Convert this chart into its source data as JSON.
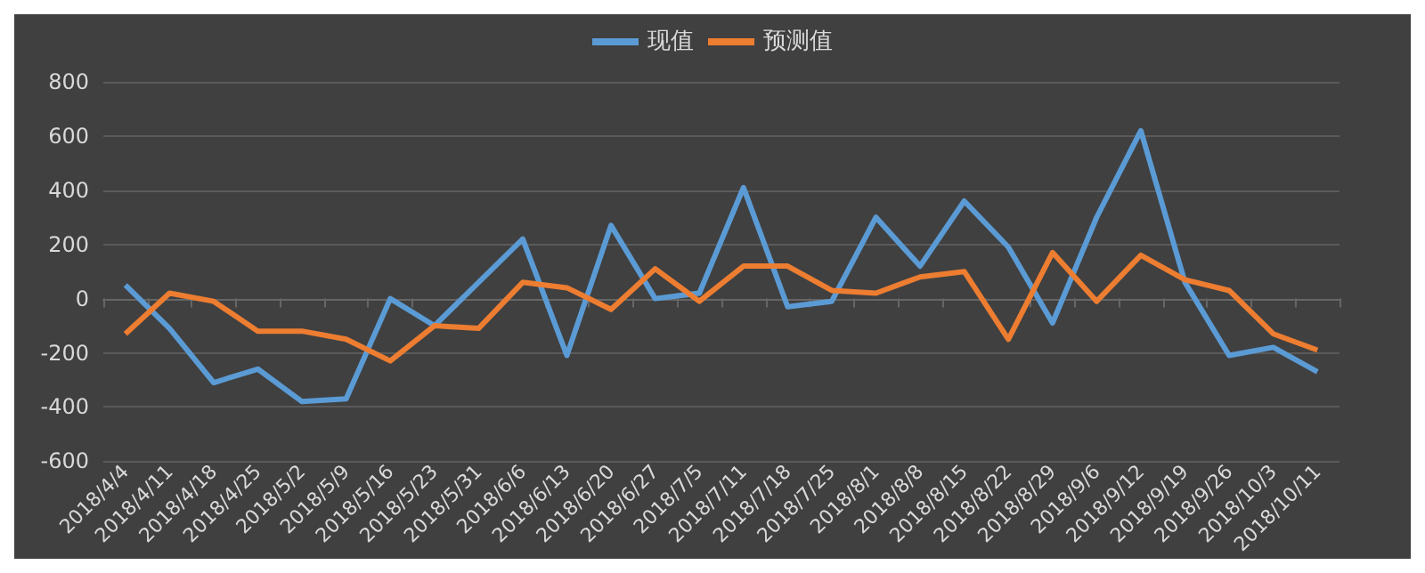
{
  "chart_data": {
    "type": "line",
    "categories": [
      "2018/4/4",
      "2018/4/11",
      "2018/4/18",
      "2018/4/25",
      "2018/5/2",
      "2018/5/9",
      "2018/5/16",
      "2018/5/23",
      "2018/5/31",
      "2018/6/6",
      "2018/6/13",
      "2018/6/20",
      "2018/6/27",
      "2018/7/5",
      "2018/7/11",
      "2018/7/18",
      "2018/7/25",
      "2018/8/1",
      "2018/8/8",
      "2018/8/15",
      "2018/8/22",
      "2018/8/29",
      "2018/9/6",
      "2018/9/12",
      "2018/9/19",
      "2018/9/26",
      "2018/10/3",
      "2018/10/11"
    ],
    "series": [
      {
        "name": "现值",
        "color": "#5b9bd5",
        "values": [
          50,
          -110,
          -310,
          -260,
          -380,
          -370,
          0,
          -100,
          60,
          220,
          -210,
          270,
          0,
          20,
          410,
          -30,
          -10,
          300,
          120,
          360,
          190,
          -90,
          300,
          620,
          60,
          -210,
          -180,
          -270
        ]
      },
      {
        "name": "预测值",
        "color": "#ed7d31",
        "values": [
          -130,
          20,
          -10,
          -120,
          -120,
          -150,
          -230,
          -100,
          -110,
          60,
          40,
          -40,
          110,
          -10,
          120,
          120,
          30,
          20,
          80,
          100,
          -150,
          170,
          -10,
          160,
          70,
          30,
          -130,
          -190
        ]
      }
    ],
    "ylim": [
      -600,
      800
    ],
    "yticks": [
      -600,
      -400,
      -200,
      0,
      200,
      400,
      600,
      800
    ],
    "grid": "y",
    "legend": "top",
    "marker": "none",
    "line_style": "solid"
  }
}
